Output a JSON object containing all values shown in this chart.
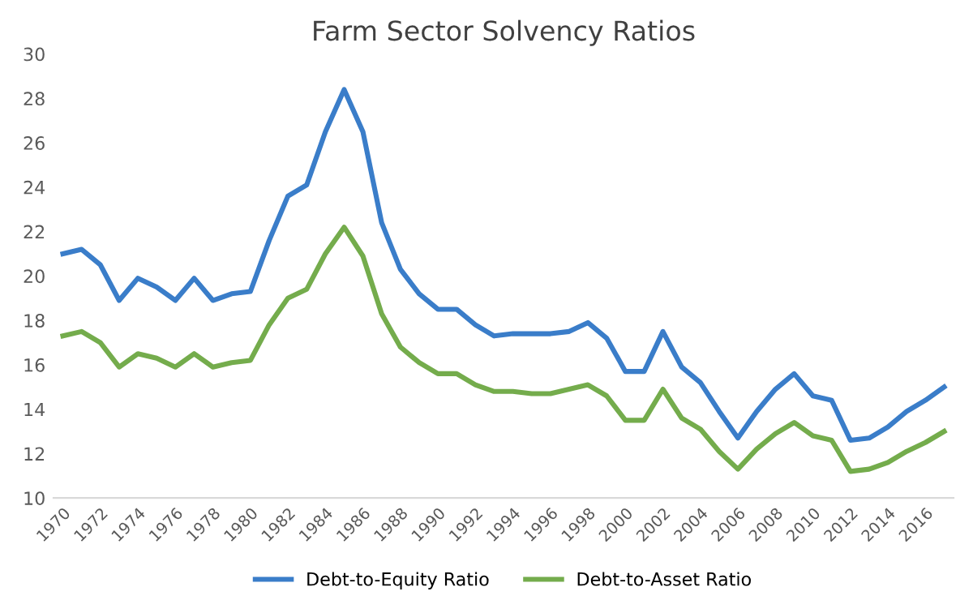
{
  "chart_data": {
    "type": "line",
    "title": "Farm Sector Solvency Ratios",
    "categories": [
      "1970",
      null,
      "1972",
      null,
      "1974",
      null,
      "1976",
      null,
      "1978",
      null,
      "1980",
      null,
      "1982",
      null,
      "1984",
      null,
      "1986",
      null,
      "1988",
      null,
      "1990",
      null,
      "1992",
      null,
      "1994",
      null,
      "1996",
      null,
      "1998",
      null,
      "2000",
      null,
      "2002",
      null,
      "2004",
      null,
      "2006",
      null,
      "2008",
      null,
      "2010",
      null,
      "2012",
      null,
      "2014",
      null,
      "2016",
      null
    ],
    "series": [
      {
        "name": "Debt-to-Equity Ratio",
        "color": "#3a7dc9",
        "values": [
          21.0,
          21.2,
          20.5,
          18.9,
          19.9,
          19.5,
          18.9,
          19.9,
          18.9,
          19.2,
          19.3,
          21.6,
          23.6,
          24.1,
          26.5,
          28.4,
          26.5,
          22.4,
          20.3,
          19.2,
          18.5,
          18.5,
          17.8,
          17.3,
          17.4,
          17.4,
          17.4,
          17.5,
          17.9,
          17.2,
          15.7,
          15.7,
          17.5,
          15.9,
          15.2,
          13.9,
          12.7,
          13.9,
          14.9,
          15.6,
          14.6,
          14.4,
          12.6,
          12.7,
          13.2,
          13.9,
          14.4,
          15.0
        ]
      },
      {
        "name": "Debt-to-Asset Ratio",
        "color": "#74ac4c",
        "values": [
          17.3,
          17.5,
          17.0,
          15.9,
          16.5,
          16.3,
          15.9,
          16.5,
          15.9,
          16.1,
          16.2,
          17.8,
          19.0,
          19.4,
          21.0,
          22.2,
          20.9,
          18.3,
          16.8,
          16.1,
          15.6,
          15.6,
          15.1,
          14.8,
          14.8,
          14.7,
          14.7,
          14.9,
          15.1,
          14.6,
          13.5,
          13.5,
          14.9,
          13.6,
          13.1,
          12.1,
          11.3,
          12.2,
          12.9,
          13.4,
          12.8,
          12.6,
          11.2,
          11.3,
          11.6,
          12.1,
          12.5,
          13.0
        ]
      }
    ],
    "ylim": [
      10,
      30
    ],
    "yticks": [
      10,
      12,
      14,
      16,
      18,
      20,
      22,
      24,
      26,
      28,
      30
    ],
    "grid": false,
    "legend": "bottom",
    "marker": "none",
    "line_style": "solid"
  }
}
